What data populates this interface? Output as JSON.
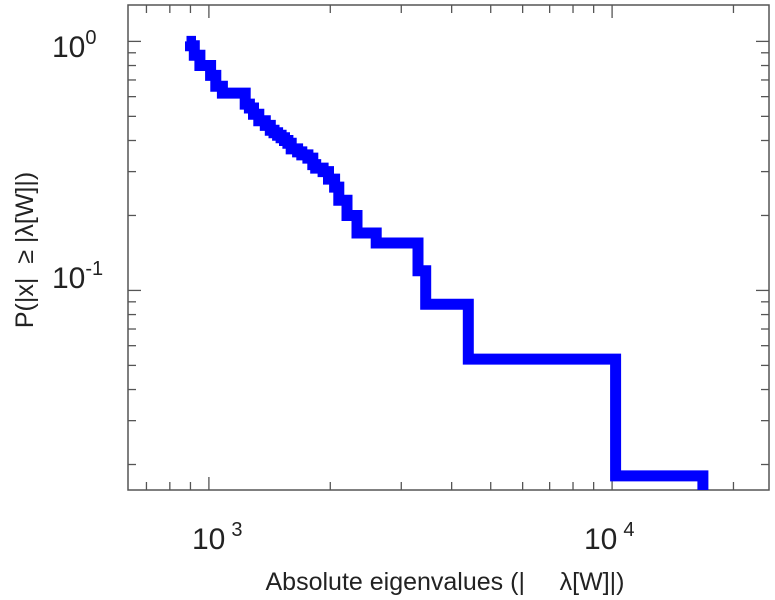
{
  "chart_data": {
    "type": "line",
    "title": "",
    "xlabel": "Absolute eigenvalues (|     λ[W]|)",
    "ylabel": "P(|x|  ≥ |λ[W]|)",
    "x_scale": "log",
    "y_scale": "log",
    "xlim": [
      630,
      24500
    ],
    "ylim": [
      0.0158,
      1.4
    ],
    "grid": false,
    "legend": "none",
    "x_ticks": [
      {
        "base": "10",
        "exp": "3",
        "value": 1000
      },
      {
        "base": "10",
        "exp": "4",
        "value": 10000
      }
    ],
    "y_ticks": [
      {
        "base": "10",
        "exp": "0",
        "value": 1
      },
      {
        "base": "10",
        "exp": "-1",
        "value": 0.1
      }
    ],
    "series": [
      {
        "color": "#0000ff",
        "step": true,
        "x": [
          880,
          900,
          920,
          950,
          1010,
          1040,
          1080,
          1230,
          1260,
          1290,
          1330,
          1380,
          1420,
          1450,
          1480,
          1510,
          1540,
          1570,
          1600,
          1660,
          1700,
          1760,
          1810,
          1840,
          1920,
          1980,
          2050,
          2100,
          2200,
          2330,
          2600,
          3000,
          3300,
          3450,
          4400,
          5000,
          6000,
          8000,
          10200,
          16800
        ],
        "y": [
          1.0,
          0.96,
          0.88,
          0.8,
          0.73,
          0.66,
          0.62,
          0.56,
          0.54,
          0.51,
          0.48,
          0.46,
          0.44,
          0.43,
          0.42,
          0.41,
          0.4,
          0.39,
          0.37,
          0.36,
          0.35,
          0.34,
          0.32,
          0.31,
          0.3,
          0.28,
          0.26,
          0.23,
          0.2,
          0.17,
          0.155,
          0.155,
          0.12,
          0.088,
          0.053,
          0.053,
          0.053,
          0.053,
          0.018,
          0.0158
        ]
      }
    ]
  }
}
